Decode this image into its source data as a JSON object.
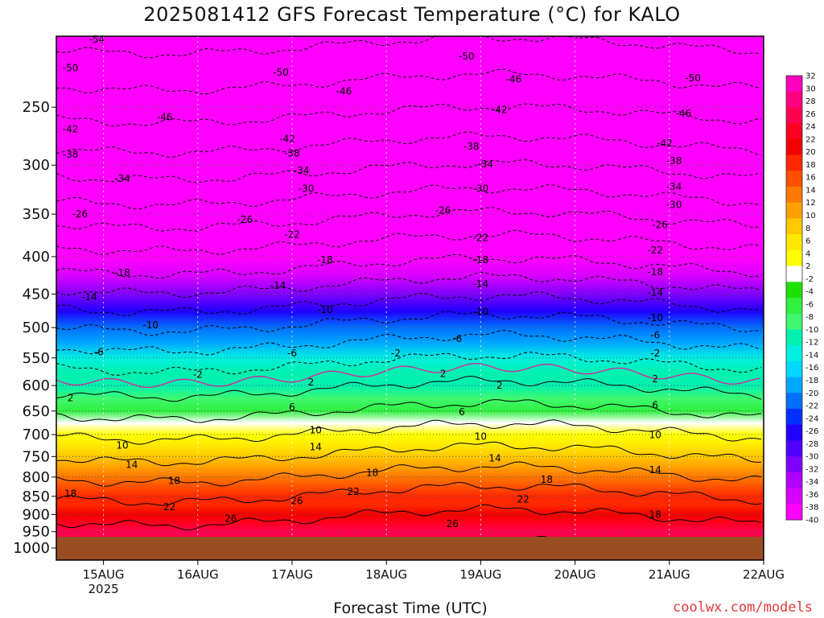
{
  "chart_data": {
    "type": "heatmap",
    "title": "2025081412 GFS Forecast Temperature (°C) for KALO",
    "xlabel": "Forecast Time (UTC)",
    "x_ticks": [
      "15AUG",
      "16AUG",
      "17AUG",
      "18AUG",
      "19AUG",
      "20AUG",
      "21AUG",
      "22AUG"
    ],
    "x_year_label": "2025",
    "y_ticks": [
      250,
      300,
      350,
      400,
      450,
      500,
      550,
      600,
      650,
      700,
      750,
      800,
      850,
      900,
      950,
      1000
    ],
    "y_scale": "log-pressure",
    "y_range_hpa": [
      200,
      1000
    ],
    "x_range_days": [
      14.5,
      22.0
    ],
    "colorbar": {
      "labels": [
        32,
        30,
        28,
        26,
        24,
        22,
        20,
        18,
        16,
        14,
        12,
        10,
        8,
        6,
        4,
        2,
        -2,
        -4,
        -6,
        -8,
        -10,
        -12,
        -14,
        -16,
        -18,
        -20,
        -22,
        -24,
        -26,
        -28,
        -30,
        -32,
        -34,
        -36,
        -38,
        -40
      ],
      "colors": [
        "#ff00c0",
        "#ff0080",
        "#ff0050",
        "#ff0020",
        "#f20000",
        "#ff2800",
        "#ff5000",
        "#ff7800",
        "#ffa000",
        "#ffc800",
        "#ffe800",
        "#ffff00",
        "#ffffff",
        "#20e000",
        "#30f040",
        "#40f870",
        "#00f0b0",
        "#00f0e0",
        "#00d8ff",
        "#00a8ff",
        "#0070ff",
        "#0030ff",
        "#2000ff",
        "#5000ff",
        "#8000ff",
        "#b000ff",
        "#d800ff",
        "#ff00ff"
      ]
    },
    "levels_hpa": [
      200,
      225,
      250,
      275,
      300,
      325,
      350,
      375,
      400,
      425,
      450,
      475,
      500,
      525,
      550,
      575,
      600,
      625,
      650,
      675,
      700,
      725,
      750,
      775,
      800,
      825,
      850,
      875,
      900,
      925,
      950,
      975,
      1000
    ],
    "profile_c": [
      -55,
      -51,
      -47,
      -43,
      -39,
      -35,
      -31,
      -27,
      -24,
      -20,
      -16,
      -12.5,
      -9,
      -6,
      -3,
      -0.5,
      1.5,
      3.5,
      6,
      8.5,
      10.5,
      12.5,
      14.5,
      16.5,
      18.5,
      20.5,
      22.5,
      24,
      25.5,
      27,
      28.5,
      29.5,
      30
    ],
    "contour_labels": [
      {
        "text": "-54",
        "day": 14.93,
        "p": 202
      },
      {
        "text": "-50",
        "day": 14.65,
        "p": 221
      },
      {
        "text": "-50",
        "day": 16.88,
        "p": 224
      },
      {
        "text": "-50",
        "day": 18.85,
        "p": 213
      },
      {
        "text": "-50",
        "day": 21.25,
        "p": 228
      },
      {
        "text": "-46",
        "day": 15.65,
        "p": 258
      },
      {
        "text": "-46",
        "day": 17.55,
        "p": 238
      },
      {
        "text": "-46",
        "day": 19.35,
        "p": 229
      },
      {
        "text": "-46",
        "day": 21.15,
        "p": 255
      },
      {
        "text": "-42",
        "day": 14.65,
        "p": 268
      },
      {
        "text": "-42",
        "day": 16.95,
        "p": 276
      },
      {
        "text": "-42",
        "day": 19.2,
        "p": 252
      },
      {
        "text": "-42",
        "day": 20.95,
        "p": 280
      },
      {
        "text": "-38",
        "day": 14.65,
        "p": 290
      },
      {
        "text": "-38",
        "day": 17.0,
        "p": 289
      },
      {
        "text": "-38",
        "day": 18.9,
        "p": 283
      },
      {
        "text": "-38",
        "day": 21.05,
        "p": 296
      },
      {
        "text": "-34",
        "day": 15.2,
        "p": 313
      },
      {
        "text": "-34",
        "day": 17.1,
        "p": 305
      },
      {
        "text": "-34",
        "day": 19.05,
        "p": 299
      },
      {
        "text": "-34",
        "day": 21.05,
        "p": 321
      },
      {
        "text": "-30",
        "day": 17.15,
        "p": 323
      },
      {
        "text": "-30",
        "day": 19.0,
        "p": 323
      },
      {
        "text": "-30",
        "day": 21.05,
        "p": 340
      },
      {
        "text": "-26",
        "day": 14.75,
        "p": 350
      },
      {
        "text": "-26",
        "day": 16.5,
        "p": 356
      },
      {
        "text": "-26",
        "day": 18.6,
        "p": 346
      },
      {
        "text": "-26",
        "day": 20.9,
        "p": 362
      },
      {
        "text": "-22",
        "day": 17.0,
        "p": 373
      },
      {
        "text": "-22",
        "day": 19.0,
        "p": 377
      },
      {
        "text": "-22",
        "day": 20.85,
        "p": 392
      },
      {
        "text": "-18",
        "day": 15.2,
        "p": 421
      },
      {
        "text": "-18",
        "day": 17.35,
        "p": 404
      },
      {
        "text": "-18",
        "day": 19.0,
        "p": 404
      },
      {
        "text": "-18",
        "day": 20.85,
        "p": 420
      },
      {
        "text": "-14",
        "day": 14.85,
        "p": 454
      },
      {
        "text": "-14",
        "day": 16.85,
        "p": 438
      },
      {
        "text": "-14",
        "day": 19.0,
        "p": 436
      },
      {
        "text": "-14",
        "day": 20.85,
        "p": 448
      },
      {
        "text": "-10",
        "day": 15.5,
        "p": 496
      },
      {
        "text": "-10",
        "day": 17.35,
        "p": 473
      },
      {
        "text": "-10",
        "day": 19.0,
        "p": 476
      },
      {
        "text": "-10",
        "day": 20.85,
        "p": 485
      },
      {
        "text": "-6",
        "day": 14.95,
        "p": 540
      },
      {
        "text": "-6",
        "day": 17.0,
        "p": 542
      },
      {
        "text": "-6",
        "day": 18.75,
        "p": 518
      },
      {
        "text": "-6",
        "day": 20.85,
        "p": 512
      },
      {
        "text": "-2",
        "day": 18.1,
        "p": 542
      },
      {
        "text": "-2",
        "day": 20.85,
        "p": 542
      },
      {
        "text": "-2",
        "day": 16.0,
        "p": 580
      },
      {
        "text": "2",
        "day": 14.65,
        "p": 624
      },
      {
        "text": "2",
        "day": 17.2,
        "p": 594
      },
      {
        "text": "2",
        "day": 18.6,
        "p": 578
      },
      {
        "text": "2",
        "day": 19.2,
        "p": 600
      },
      {
        "text": "2",
        "day": 20.85,
        "p": 588
      },
      {
        "text": "6",
        "day": 17.0,
        "p": 642
      },
      {
        "text": "6",
        "day": 18.8,
        "p": 652
      },
      {
        "text": "6",
        "day": 20.85,
        "p": 638
      },
      {
        "text": "10",
        "day": 15.2,
        "p": 724
      },
      {
        "text": "10",
        "day": 17.25,
        "p": 690
      },
      {
        "text": "10",
        "day": 19.0,
        "p": 704
      },
      {
        "text": "10",
        "day": 20.85,
        "p": 701
      },
      {
        "text": "14",
        "day": 15.3,
        "p": 770
      },
      {
        "text": "14",
        "day": 17.25,
        "p": 728
      },
      {
        "text": "14",
        "day": 19.15,
        "p": 754
      },
      {
        "text": "14",
        "day": 20.85,
        "p": 782
      },
      {
        "text": "18",
        "day": 14.65,
        "p": 843
      },
      {
        "text": "18",
        "day": 15.75,
        "p": 810
      },
      {
        "text": "18",
        "day": 17.85,
        "p": 789
      },
      {
        "text": "18",
        "day": 19.7,
        "p": 806
      },
      {
        "text": "18",
        "day": 20.85,
        "p": 900
      },
      {
        "text": "22",
        "day": 15.7,
        "p": 879
      },
      {
        "text": "22",
        "day": 17.65,
        "p": 838
      },
      {
        "text": "22",
        "day": 19.45,
        "p": 858
      },
      {
        "text": "26",
        "day": 16.35,
        "p": 912
      },
      {
        "text": "26",
        "day": 17.05,
        "p": 862
      },
      {
        "text": "26",
        "day": 18.7,
        "p": 927
      }
    ]
  },
  "footer": {
    "credit": "coolwx.com/models"
  }
}
